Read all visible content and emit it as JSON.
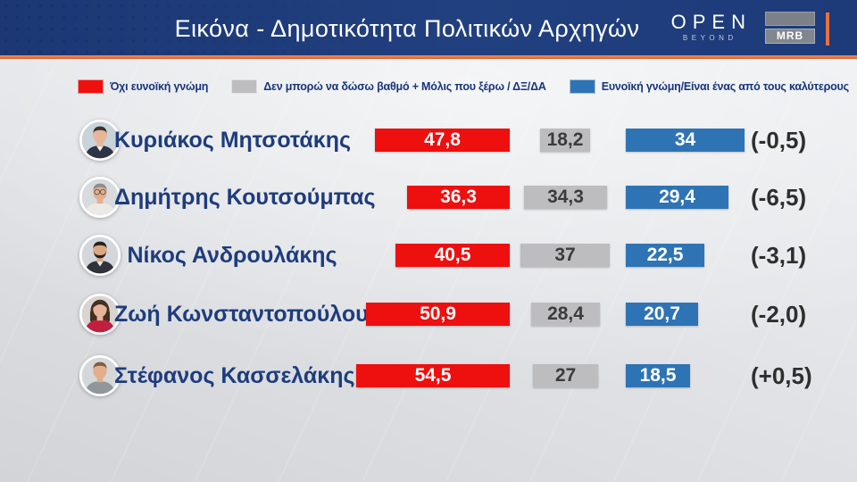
{
  "header": {
    "title": "Εικόνα - Δημοτικότητα Πολιτικών Αρχηγών",
    "brand": {
      "open": "OPEN",
      "beyond": "BEYOND",
      "mrb": "MRB"
    },
    "colors": {
      "bar_background": "#1d3a79",
      "accent_line": "#e7713f"
    }
  },
  "legend": [
    {
      "key": "negative",
      "label": "Όχι ευνοϊκή γνώμη",
      "color": "#ee0f0f"
    },
    {
      "key": "neutral",
      "label": "Δεν μπορώ να δώσω βαθμό + Μόλις που ξέρω / ΔΞ/ΔΑ",
      "color": "#bdbdbf"
    },
    {
      "key": "positive",
      "label": "Ευνοϊκή γνώμη/Είναι ένας από τους καλύτερους",
      "color": "#2e74b5"
    }
  ],
  "chart_data": {
    "type": "bar",
    "orientation": "horizontal",
    "title": "Εικόνα - Δημοτικότητα Πολιτικών Αρχηγών",
    "categories": [
      "Κυριάκος Μητσοτάκης",
      "Δημήτρης Κουτσούμπας",
      "Νίκος Ανδρουλάκης",
      "Ζωή Κωνσταντοπούλου",
      "Στέφανος Κασσελάκης"
    ],
    "series": [
      {
        "name": "Όχι ευνοϊκή γνώμη",
        "color": "#ee0f0f",
        "values": [
          47.8,
          36.3,
          40.5,
          50.9,
          54.5
        ]
      },
      {
        "name": "Δεν μπορώ να δώσω βαθμό + Μόλις που ξέρω / ΔΞ/ΔΑ",
        "color": "#bdbdbf",
        "values": [
          18.2,
          34.3,
          37,
          28.4,
          27
        ]
      },
      {
        "name": "Ευνοϊκή γνώμη/Είναι ένας από τους καλύτερους",
        "color": "#2e74b5",
        "values": [
          34,
          29.4,
          22.5,
          20.7,
          18.5
        ]
      }
    ],
    "annotations": {
      "change_labels": [
        "(-0,5)",
        "(-6,5)",
        "(-3,1)",
        "(-2,0)",
        "(+0,5)"
      ]
    },
    "legend_position": "top",
    "grid": false
  },
  "rows": [
    {
      "name": "Κυριάκος Μητσοτάκης",
      "values": {
        "negative": 47.8,
        "neutral": 18.2,
        "positive": 34
      },
      "labels": {
        "negative": "47,8",
        "neutral": "18,2",
        "positive": "34"
      },
      "change": "(-0,5)",
      "avatar": {
        "bg": "#c9d3da",
        "skin": "#e7b697",
        "hair": "#3b3330",
        "top": "#2c3546",
        "shirt": "#f3f3f3",
        "beard": false,
        "glasses": false,
        "female": false
      }
    },
    {
      "name": "Δημήτρης Κουτσούμπας",
      "values": {
        "negative": 36.3,
        "neutral": 34.3,
        "positive": 29.4
      },
      "labels": {
        "negative": "36,3",
        "neutral": "34,3",
        "positive": "29,4"
      },
      "change": "(-6,5)",
      "avatar": {
        "bg": "#d7dbde",
        "skin": "#e3b08f",
        "hair": "#8e8e8e",
        "top": "#eceae6",
        "shirt": "",
        "beard": false,
        "glasses": true,
        "female": false
      }
    },
    {
      "name": "Νίκος Ανδρουλάκης",
      "values": {
        "negative": 40.5,
        "neutral": 37,
        "positive": 22.5
      },
      "labels": {
        "negative": "40,5",
        "neutral": "37",
        "positive": "22,5"
      },
      "change": "(-3,1)",
      "avatar": {
        "bg": "#d3d7db",
        "skin": "#dba883",
        "hair": "#26221f",
        "top": "#30343a",
        "shirt": "#e9e9e9",
        "beard": true,
        "glasses": false,
        "female": false
      }
    },
    {
      "name": "Ζωή Κωνσταντοπούλου",
      "values": {
        "negative": 50.9,
        "neutral": 28.4,
        "positive": 20.7
      },
      "labels": {
        "negative": "50,9",
        "neutral": "28,4",
        "positive": "20,7"
      },
      "change": "(-2,0)",
      "avatar": {
        "bg": "#d8d4d2",
        "skin": "#e6b498",
        "hair": "#43301f",
        "top": "#c11f3e",
        "shirt": "",
        "beard": false,
        "glasses": false,
        "female": true
      }
    },
    {
      "name": "Στέφανος Κασσελάκης",
      "values": {
        "negative": 54.5,
        "neutral": 27,
        "positive": 18.5
      },
      "labels": {
        "negative": "54,5",
        "neutral": "27",
        "positive": "18,5"
      },
      "change": "(+0,5)",
      "avatar": {
        "bg": "#d5d8da",
        "skin": "#e2ae8c",
        "hair": "#7d5f43",
        "top": "#90969c",
        "shirt": "",
        "beard": false,
        "glasses": false,
        "female": false
      }
    }
  ]
}
